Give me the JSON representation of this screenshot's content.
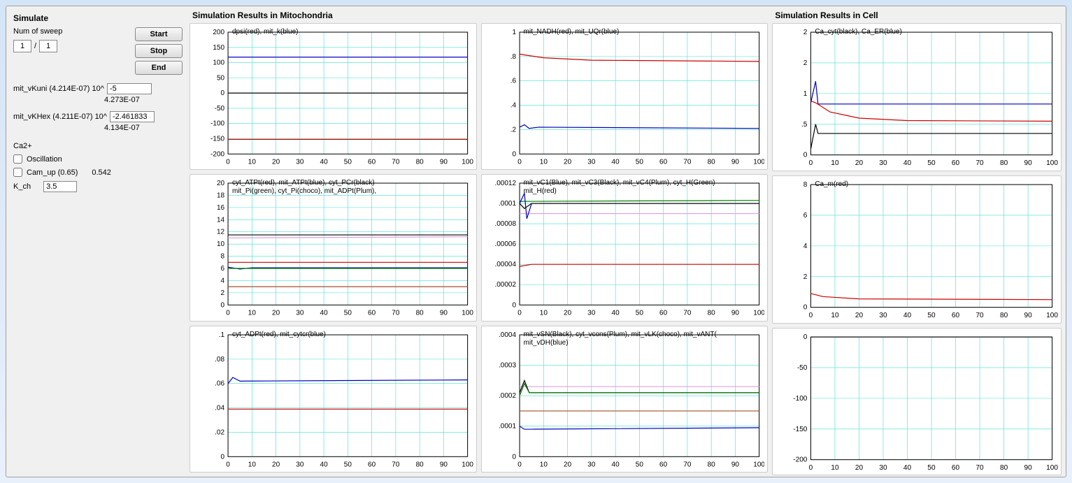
{
  "controls": {
    "section_title": "Simulate",
    "sweep_label": "Num of sweep",
    "sweep_current": "1",
    "sweep_sep": "/",
    "sweep_total": "1",
    "start_label": "Start",
    "stop_label": "Stop",
    "end_label": "End",
    "param1_label": "mit_vKuni (4.214E-07)  10^",
    "param1_value": "-5",
    "param1_result": "4.273E-07",
    "param2_label": "mit_vKHex (4.211E-07)  10^",
    "param2_value": "-2.461833",
    "param2_result": "4.134E-07",
    "ca_title": "Ca2+",
    "osc_label": "Oscillation",
    "cam_label": "Cam_up (0.65)",
    "cam_value": "0.542",
    "kch_label": "K_ch",
    "kch_value": "3.5"
  },
  "mito_title": "Simulation Results in Mitochondria",
  "cell_title": "Simulation Results in Cell",
  "x_axis": {
    "min": 0,
    "max": 100,
    "step": 10
  },
  "colors": {
    "grid": "#40e0d0",
    "axis": "#000000",
    "red": "#d00000",
    "blue": "#0000c0",
    "black": "#000000",
    "green": "#008000",
    "plum": "#dda0dd",
    "choco": "#a0522d",
    "bg": "#ffffff"
  },
  "charts": {
    "m1": {
      "title": "dpsi(red), mit_k(blue)",
      "ylim": [
        -200,
        200
      ],
      "ystep": 50,
      "series": [
        {
          "color": "red",
          "data": [
            [
              0,
              -152
            ],
            [
              100,
              -152
            ]
          ]
        },
        {
          "color": "blue",
          "data": [
            [
              0,
              118
            ],
            [
              100,
              118
            ]
          ]
        },
        {
          "color": "black",
          "data": [
            [
              0,
              0
            ],
            [
              100,
              0
            ]
          ]
        }
      ]
    },
    "m2": {
      "title": "mit_NADH(red), mit_UQr(blue)",
      "ylim": [
        0,
        1
      ],
      "ystep": 0.2,
      "series": [
        {
          "color": "red",
          "data": [
            [
              0,
              0.82
            ],
            [
              3,
              0.81
            ],
            [
              10,
              0.79
            ],
            [
              30,
              0.77
            ],
            [
              100,
              0.76
            ]
          ]
        },
        {
          "color": "blue",
          "data": [
            [
              0,
              0.22
            ],
            [
              2,
              0.24
            ],
            [
              4,
              0.21
            ],
            [
              8,
              0.22
            ],
            [
              100,
              0.21
            ]
          ]
        }
      ]
    },
    "m3": {
      "title": "cyt_ATPt(red), mit_ATPt(blue), cyt_PCr(black)\nmit_Pi(green), cyt_Pi(choco), mit_ADPt(Plum),",
      "ylim": [
        0,
        20
      ],
      "ystep": 2,
      "series": [
        {
          "color": "black",
          "data": [
            [
              0,
              11.5
            ],
            [
              100,
              11.5
            ]
          ]
        },
        {
          "color": "plum",
          "data": [
            [
              0,
              11
            ],
            [
              100,
              11.2
            ]
          ]
        },
        {
          "color": "red",
          "data": [
            [
              0,
              7
            ],
            [
              100,
              7
            ]
          ]
        },
        {
          "color": "blue",
          "data": [
            [
              0,
              6.2
            ],
            [
              5,
              5.9
            ],
            [
              10,
              6.1
            ],
            [
              100,
              6.1
            ]
          ]
        },
        {
          "color": "green",
          "data": [
            [
              0,
              6
            ],
            [
              100,
              6
            ]
          ]
        },
        {
          "color": "choco",
          "data": [
            [
              0,
              3
            ],
            [
              100,
              3
            ]
          ]
        }
      ]
    },
    "m4": {
      "title": "mit_vC1(Blue), mit_vC3(Black), mit_vC4(Plum),  cyt_H(Green)\nmit_H(red)",
      "ylim": [
        0,
        0.00012
      ],
      "ystep": 2e-05,
      "series": [
        {
          "color": "green",
          "data": [
            [
              0,
              0.000102
            ],
            [
              100,
              0.000103
            ]
          ]
        },
        {
          "color": "plum",
          "data": [
            [
              0,
              9e-05
            ],
            [
              100,
              9e-05
            ]
          ]
        },
        {
          "color": "blue",
          "data": [
            [
              0,
              0.0001
            ],
            [
              2,
              0.00011
            ],
            [
              3,
              8.5e-05
            ],
            [
              5,
              0.0001
            ],
            [
              100,
              0.0001
            ]
          ]
        },
        {
          "color": "black",
          "data": [
            [
              0,
              0.0001
            ],
            [
              2,
              9.5e-05
            ],
            [
              5,
              0.0001
            ],
            [
              100,
              0.0001
            ]
          ]
        },
        {
          "color": "red",
          "data": [
            [
              0,
              3.8e-05
            ],
            [
              5,
              4e-05
            ],
            [
              100,
              4e-05
            ]
          ]
        }
      ]
    },
    "m5": {
      "title": "cyt_ADPt(red), mit_cytcr(blue)",
      "ylim": [
        0,
        0.1
      ],
      "ystep": 0.02,
      "series": [
        {
          "color": "blue",
          "data": [
            [
              0,
              0.06
            ],
            [
              2,
              0.065
            ],
            [
              5,
              0.062
            ],
            [
              100,
              0.063
            ]
          ]
        },
        {
          "color": "red",
          "data": [
            [
              0,
              0.039
            ],
            [
              100,
              0.039
            ]
          ]
        }
      ]
    },
    "m6": {
      "title": "mit_vSN(Black), cyt_vcons(Plum), mit_vLK(choco), mit_vANT(\nmit_vDH(blue)",
      "ylim": [
        0,
        0.0004
      ],
      "ystep": 0.0001,
      "series": [
        {
          "color": "plum",
          "data": [
            [
              0,
              0.00023
            ],
            [
              100,
              0.00023
            ]
          ]
        },
        {
          "color": "black",
          "data": [
            [
              0,
              0.00021
            ],
            [
              2,
              0.00025
            ],
            [
              4,
              0.00021
            ],
            [
              100,
              0.00021
            ]
          ]
        },
        {
          "color": "green",
          "data": [
            [
              0,
              0.0002
            ],
            [
              2,
              0.00024
            ],
            [
              4,
              0.00021
            ],
            [
              100,
              0.00021
            ]
          ]
        },
        {
          "color": "choco",
          "data": [
            [
              0,
              0.00015
            ],
            [
              100,
              0.00015
            ]
          ]
        },
        {
          "color": "blue",
          "data": [
            [
              0,
              0.0001
            ],
            [
              2,
              9e-05
            ],
            [
              100,
              9.5e-05
            ]
          ]
        }
      ]
    },
    "c1": {
      "title": "Ca_cyt(black), Ca_ER(blue)",
      "ylim": [
        0,
        2
      ],
      "ystep": 0.5,
      "series": [
        {
          "color": "blue",
          "data": [
            [
              0,
              0.85
            ],
            [
              2,
              1.2
            ],
            [
              3,
              0.83
            ],
            [
              100,
              0.83
            ]
          ]
        },
        {
          "color": "red",
          "data": [
            [
              0,
              0.88
            ],
            [
              2,
              0.85
            ],
            [
              8,
              0.7
            ],
            [
              20,
              0.6
            ],
            [
              40,
              0.56
            ],
            [
              100,
              0.55
            ]
          ]
        },
        {
          "color": "black",
          "data": [
            [
              0,
              0.1
            ],
            [
              2,
              0.5
            ],
            [
              3,
              0.35
            ],
            [
              100,
              0.35
            ]
          ]
        }
      ]
    },
    "c2": {
      "title": "Ca_m(red)",
      "ylim": [
        0,
        8
      ],
      "ystep": 2,
      "series": [
        {
          "color": "red",
          "data": [
            [
              0,
              0.9
            ],
            [
              5,
              0.7
            ],
            [
              20,
              0.55
            ],
            [
              100,
              0.5
            ]
          ]
        }
      ]
    },
    "c3": {
      "title": "",
      "ylim": [
        -200,
        0
      ],
      "ystep": 50,
      "series": [
        {
          "color": "black",
          "data": [
            [
              0,
              0
            ],
            [
              100,
              0
            ]
          ]
        }
      ]
    }
  }
}
